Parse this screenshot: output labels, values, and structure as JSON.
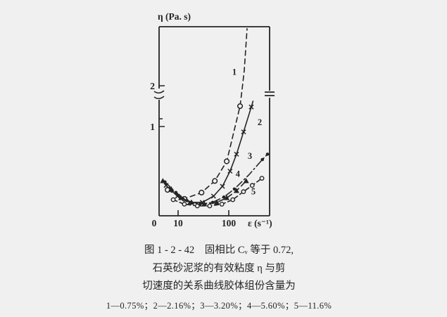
{
  "figure": {
    "paper_color": "#f0f0f1",
    "ink_color": "#242424"
  },
  "caption": {
    "line1": "图 1 - 2 - 42 固相比 Cᵥ 等于 0.72,",
    "line2": "石英砂泥浆的有效粘度 η 与剪",
    "line3": "切速度的关系曲线胶体组份含量为",
    "legend_line": "1—0.75%；2—2.16%；3—3.20%；4—5.60%；5—11.6%"
  },
  "chart_data": {
    "type": "line",
    "title": "",
    "xlabel": "ε (s⁻¹)",
    "ylabel": "η (Pa. s)",
    "x_scale": "log",
    "xlim": [
      4,
      640
    ],
    "ylim": [
      0,
      3.4
    ],
    "y_axis_break_between": [
      2.0,
      2.1
    ],
    "grid": false,
    "legend_position": "caption-below",
    "origin_label": "0",
    "x_ticks": [
      {
        "value": 10,
        "label": "10"
      },
      {
        "value": 100,
        "label": "100"
      }
    ],
    "y_ticks": [
      {
        "value": 1,
        "label": "1"
      },
      {
        "value": 2,
        "label": "2"
      }
    ],
    "series": [
      {
        "id": 1,
        "label": "1",
        "content": "0.75%",
        "marker": "circle-open",
        "dash": "7 5",
        "label_at": [
          129,
          2.34
        ],
        "line": [
          [
            6.2,
            0.29
          ],
          [
            13.3,
            0.19
          ],
          [
            29,
            0.26
          ],
          [
            53,
            0.39
          ],
          [
            91,
            0.61
          ],
          [
            167,
            1.5
          ],
          [
            185,
            1.95
          ],
          [
            202,
            2.38
          ],
          [
            230,
            3.4
          ]
        ],
        "markers": [
          [
            6.2,
            0.29
          ],
          [
            13.3,
            0.19
          ],
          [
            29,
            0.26
          ],
          [
            53,
            0.39
          ],
          [
            91,
            0.61
          ],
          [
            167,
            1.5
          ]
        ]
      },
      {
        "id": 2,
        "label": "2",
        "content": "2.16%",
        "marker": "x",
        "dash": "",
        "label_at": [
          408,
          1.1
        ],
        "line": [
          [
            5.8,
            0.34
          ],
          [
            9.7,
            0.22
          ],
          [
            17,
            0.15
          ],
          [
            30,
            0.15
          ],
          [
            50,
            0.22
          ],
          [
            75,
            0.33
          ],
          [
            106,
            0.5
          ],
          [
            142,
            0.69
          ],
          [
            196,
            0.94
          ],
          [
            278,
            1.48
          ],
          [
            300,
            1.62
          ]
        ],
        "markers": [
          [
            5.8,
            0.34
          ],
          [
            9.7,
            0.22
          ],
          [
            17,
            0.15
          ],
          [
            30,
            0.15
          ],
          [
            50,
            0.22
          ],
          [
            75,
            0.33
          ],
          [
            106,
            0.5
          ],
          [
            142,
            0.69
          ],
          [
            196,
            0.94
          ],
          [
            278,
            1.48
          ]
        ]
      },
      {
        "id": 3,
        "label": "3",
        "content": "3.20%",
        "marker": "dot",
        "dash": "10 4 2 4",
        "label_at": [
          261,
          0.67
        ],
        "line": [
          [
            5.5,
            0.38
          ],
          [
            9.1,
            0.26
          ],
          [
            15,
            0.17
          ],
          [
            27,
            0.13
          ],
          [
            48,
            0.15
          ],
          [
            80,
            0.21
          ],
          [
            129,
            0.3
          ],
          [
            250,
            0.46
          ],
          [
            460,
            0.63
          ],
          [
            580,
            0.69
          ]
        ],
        "markers": [
          [
            5.5,
            0.38
          ],
          [
            9.1,
            0.26
          ],
          [
            15,
            0.17
          ],
          [
            27,
            0.13
          ],
          [
            48,
            0.15
          ],
          [
            80,
            0.21
          ],
          [
            129,
            0.3
          ],
          [
            460,
            0.63
          ],
          [
            580,
            0.69
          ]
        ]
      },
      {
        "id": 4,
        "label": "4",
        "content": "5.60%",
        "marker": "triangle",
        "dash": "8 5",
        "label_at": [
          151,
          0.47
        ],
        "line": [
          [
            5.0,
            0.39
          ],
          [
            7.3,
            0.3
          ],
          [
            11.4,
            0.2
          ],
          [
            18.4,
            0.15
          ],
          [
            33,
            0.13
          ],
          [
            58,
            0.15
          ],
          [
            91,
            0.2
          ],
          [
            142,
            0.28
          ],
          [
            220,
            0.39
          ]
        ],
        "markers": [
          [
            5.0,
            0.39
          ],
          [
            7.3,
            0.3
          ],
          [
            11.4,
            0.2
          ],
          [
            18.4,
            0.15
          ],
          [
            33,
            0.13
          ],
          [
            58,
            0.15
          ],
          [
            91,
            0.2
          ],
          [
            142,
            0.28
          ],
          [
            220,
            0.39
          ]
        ]
      },
      {
        "id": 5,
        "label": "5",
        "content": "11.6%",
        "marker": "circle-open-small",
        "dash": "6 4",
        "label_at": [
          306,
          0.27
        ],
        "line": [
          [
            8,
            0.18
          ],
          [
            13.3,
            0.13
          ],
          [
            24,
            0.11
          ],
          [
            42,
            0.11
          ],
          [
            73,
            0.13
          ],
          [
            120,
            0.18
          ],
          [
            195,
            0.27
          ],
          [
            290,
            0.34
          ],
          [
            450,
            0.42
          ]
        ],
        "markers": [
          [
            8,
            0.18
          ],
          [
            13.3,
            0.13
          ],
          [
            24,
            0.11
          ],
          [
            42,
            0.11
          ],
          [
            73,
            0.13
          ],
          [
            120,
            0.18
          ],
          [
            195,
            0.27
          ],
          [
            290,
            0.34
          ],
          [
            450,
            0.42
          ]
        ]
      }
    ]
  }
}
